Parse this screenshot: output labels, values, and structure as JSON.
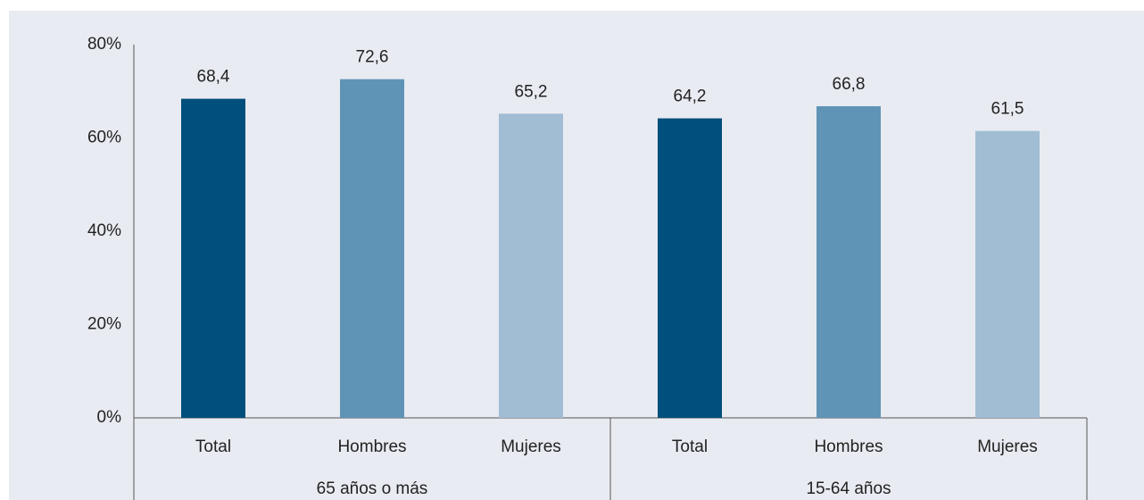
{
  "chart_data": {
    "type": "bar",
    "categories": [
      "Total",
      "Hombres",
      "Mujeres",
      "Total",
      "Hombres",
      "Mujeres"
    ],
    "groups": [
      {
        "label": "65 años o más",
        "count": 3
      },
      {
        "label": "15-64 años",
        "count": 3
      }
    ],
    "values": [
      68.4,
      72.6,
      65.2,
      64.2,
      66.8,
      61.5
    ],
    "value_labels": [
      "68,4",
      "72,6",
      "65,2",
      "64,2",
      "66,8",
      "61,5"
    ],
    "colors": [
      "#004f7c",
      "#5f94b6",
      "#a0bdd3",
      "#004f7c",
      "#5f94b6",
      "#a0bdd3"
    ],
    "ylim": [
      0,
      80
    ],
    "yticks": [
      {
        "value": 0,
        "label": "0%"
      },
      {
        "value": 20,
        "label": "20%"
      },
      {
        "value": 40,
        "label": "40%"
      },
      {
        "value": 60,
        "label": "60%"
      },
      {
        "value": 80,
        "label": "80%"
      }
    ],
    "grid": false
  }
}
